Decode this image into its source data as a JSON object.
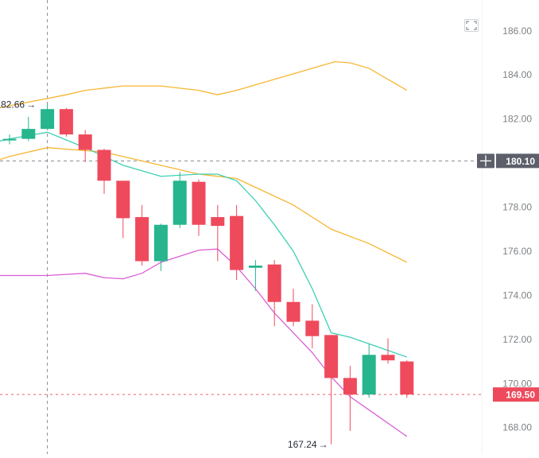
{
  "chart_data": {
    "type": "candlestick",
    "ylim": [
      166.8,
      187.4
    ],
    "y_ticks": [
      "186.00",
      "184.00",
      "182.00",
      "180.00",
      "178.00",
      "176.00",
      "174.00",
      "172.00",
      "170.00",
      "168.00"
    ],
    "y_tick_values": [
      186,
      184,
      182,
      180,
      178,
      176,
      174,
      172,
      170,
      168
    ],
    "colors": {
      "up": "#26b58d",
      "down": "#ef4a5c",
      "upper_band": "#f7b632",
      "middle_band": "#3fcfb3",
      "lower_band": "#d95fd6",
      "tag": "#5d606b",
      "last_tag": "#ef4a5c",
      "axis_text": "#7d8084",
      "crosshair": "#555a66"
    },
    "candles": [
      {
        "o": 181.1,
        "h": 181.3,
        "l": 180.85,
        "c": 181.1
      },
      {
        "o": 181.1,
        "h": 182.1,
        "l": 181.0,
        "c": 181.55
      },
      {
        "o": 181.55,
        "h": 182.66,
        "l": 181.55,
        "c": 182.45
      },
      {
        "o": 182.45,
        "h": 182.5,
        "l": 181.2,
        "c": 181.3
      },
      {
        "o": 181.3,
        "h": 181.5,
        "l": 180.05,
        "c": 180.6
      },
      {
        "o": 180.6,
        "h": 180.65,
        "l": 178.6,
        "c": 179.2
      },
      {
        "o": 179.2,
        "h": 179.2,
        "l": 176.6,
        "c": 177.5
      },
      {
        "o": 177.55,
        "h": 178.1,
        "l": 175.35,
        "c": 175.55
      },
      {
        "o": 175.55,
        "h": 177.25,
        "l": 175.1,
        "c": 177.2
      },
      {
        "o": 177.2,
        "h": 179.6,
        "l": 177.05,
        "c": 179.2
      },
      {
        "o": 179.15,
        "h": 179.25,
        "l": 176.7,
        "c": 177.2
      },
      {
        "o": 177.55,
        "h": 178.1,
        "l": 175.55,
        "c": 177.15
      },
      {
        "o": 177.6,
        "h": 178.1,
        "l": 174.7,
        "c": 175.15
      },
      {
        "o": 175.25,
        "h": 175.6,
        "l": 174.2,
        "c": 175.35
      },
      {
        "o": 175.4,
        "h": 175.6,
        "l": 172.6,
        "c": 173.7
      },
      {
        "o": 173.7,
        "h": 174.3,
        "l": 172.6,
        "c": 172.8
      },
      {
        "o": 172.85,
        "h": 173.6,
        "l": 171.6,
        "c": 172.15
      },
      {
        "o": 172.2,
        "h": 172.2,
        "l": 167.24,
        "c": 170.25
      },
      {
        "o": 170.25,
        "h": 170.8,
        "l": 167.85,
        "c": 169.5
      },
      {
        "o": 169.5,
        "h": 171.8,
        "l": 169.35,
        "c": 171.3
      },
      {
        "o": 171.3,
        "h": 172.05,
        "l": 170.9,
        "c": 171.05
      },
      {
        "o": 171.0,
        "h": 171.05,
        "l": 169.35,
        "c": 169.5
      }
    ],
    "upper_band": [
      [
        -3,
        182.1
      ],
      [
        3,
        183.1
      ],
      [
        4,
        183.3
      ],
      [
        6,
        183.5
      ],
      [
        8,
        183.5
      ],
      [
        10,
        183.3
      ],
      [
        11,
        183.1
      ],
      [
        12,
        183.3
      ],
      [
        14,
        183.8
      ],
      [
        16,
        184.3
      ],
      [
        17.2,
        184.6
      ],
      [
        18,
        184.55
      ],
      [
        19,
        184.3
      ],
      [
        21,
        183.3
      ]
    ],
    "middle_band": [
      [
        -3,
        179.5
      ],
      [
        0,
        180.3
      ],
      [
        2,
        180.7
      ],
      [
        5,
        180.5
      ],
      [
        7,
        180.1
      ],
      [
        10,
        179.5
      ],
      [
        12,
        179.3
      ],
      [
        13,
        178.9
      ],
      [
        15,
        178.1
      ],
      [
        17,
        177.0
      ],
      [
        19,
        176.35
      ],
      [
        21,
        175.5
      ]
    ],
    "inner_band": [
      [
        -3,
        180.5
      ],
      [
        0,
        181.1
      ],
      [
        2,
        181.4
      ],
      [
        4,
        180.7
      ],
      [
        6,
        179.9
      ],
      [
        8,
        179.4
      ],
      [
        10,
        179.5
      ],
      [
        11,
        179.5
      ],
      [
        12,
        179.2
      ],
      [
        13,
        178.3
      ],
      [
        14,
        177.2
      ],
      [
        15,
        176.0
      ],
      [
        16,
        174.3
      ],
      [
        17,
        172.3
      ],
      [
        18,
        172.1
      ],
      [
        19,
        171.8
      ],
      [
        21,
        171.2
      ]
    ],
    "lower_band": [
      [
        -3,
        174.9
      ],
      [
        0,
        174.9
      ],
      [
        2,
        174.9
      ],
      [
        4,
        175.0
      ],
      [
        5,
        174.8
      ],
      [
        6,
        174.75
      ],
      [
        7,
        175.0
      ],
      [
        8,
        175.5
      ],
      [
        10,
        176.05
      ],
      [
        11,
        176.1
      ],
      [
        12,
        175.3
      ],
      [
        13,
        174.3
      ],
      [
        14,
        173.2
      ],
      [
        15,
        172.3
      ],
      [
        16,
        171.4
      ],
      [
        17,
        170.3
      ],
      [
        18,
        169.4
      ],
      [
        19,
        168.8
      ],
      [
        21,
        167.6
      ]
    ],
    "crosshair_price": "180.10",
    "crosshair_value": 180.1,
    "last_price": "169.50",
    "last_value": 169.5,
    "high_label": "182.66",
    "high_candle": 2,
    "low_label": "167.24",
    "low_candle": 17,
    "crosshair_candle": 2,
    "arrow": "→"
  }
}
